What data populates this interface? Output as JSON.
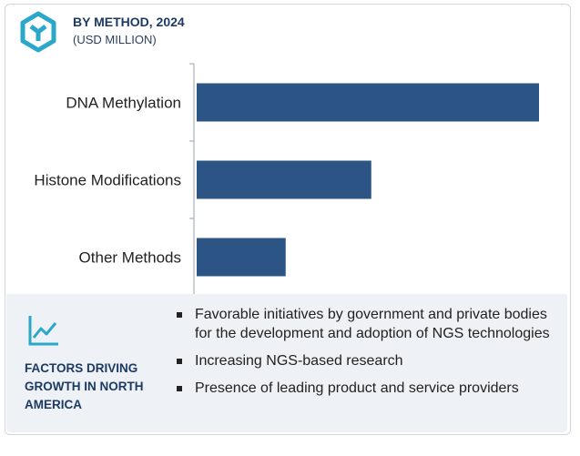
{
  "header": {
    "title": "BY METHOD, 2024",
    "subtitle": "(USD MILLION)"
  },
  "colors": {
    "bar": "#2c5585",
    "title": "#1c3a63",
    "icon": "#2aa7c9",
    "footer_bg": "#eef1f5"
  },
  "chart_data": {
    "type": "bar",
    "orientation": "horizontal",
    "categories": [
      "DNA Methylation",
      "Histone Modifications",
      "Other Methods"
    ],
    "values": [
      100,
      51,
      26
    ],
    "title": "BY METHOD, 2024",
    "subtitle": "(USD MILLION)",
    "xlabel": "",
    "ylabel": "",
    "xlim": [
      0,
      100
    ],
    "grid": false,
    "legend": "none",
    "value_axis_labels": "none"
  },
  "factors": {
    "title": "FACTORS DRIVING GROWTH IN NORTH AMERICA",
    "items": [
      "Favorable initiatives by government and private bodies for the development and adoption of NGS technologies",
      "Increasing NGS-based research",
      "Presence of leading product and service providers"
    ]
  },
  "icons": {
    "logo": "hexagon-logo-icon",
    "trend": "trend-line-icon"
  }
}
